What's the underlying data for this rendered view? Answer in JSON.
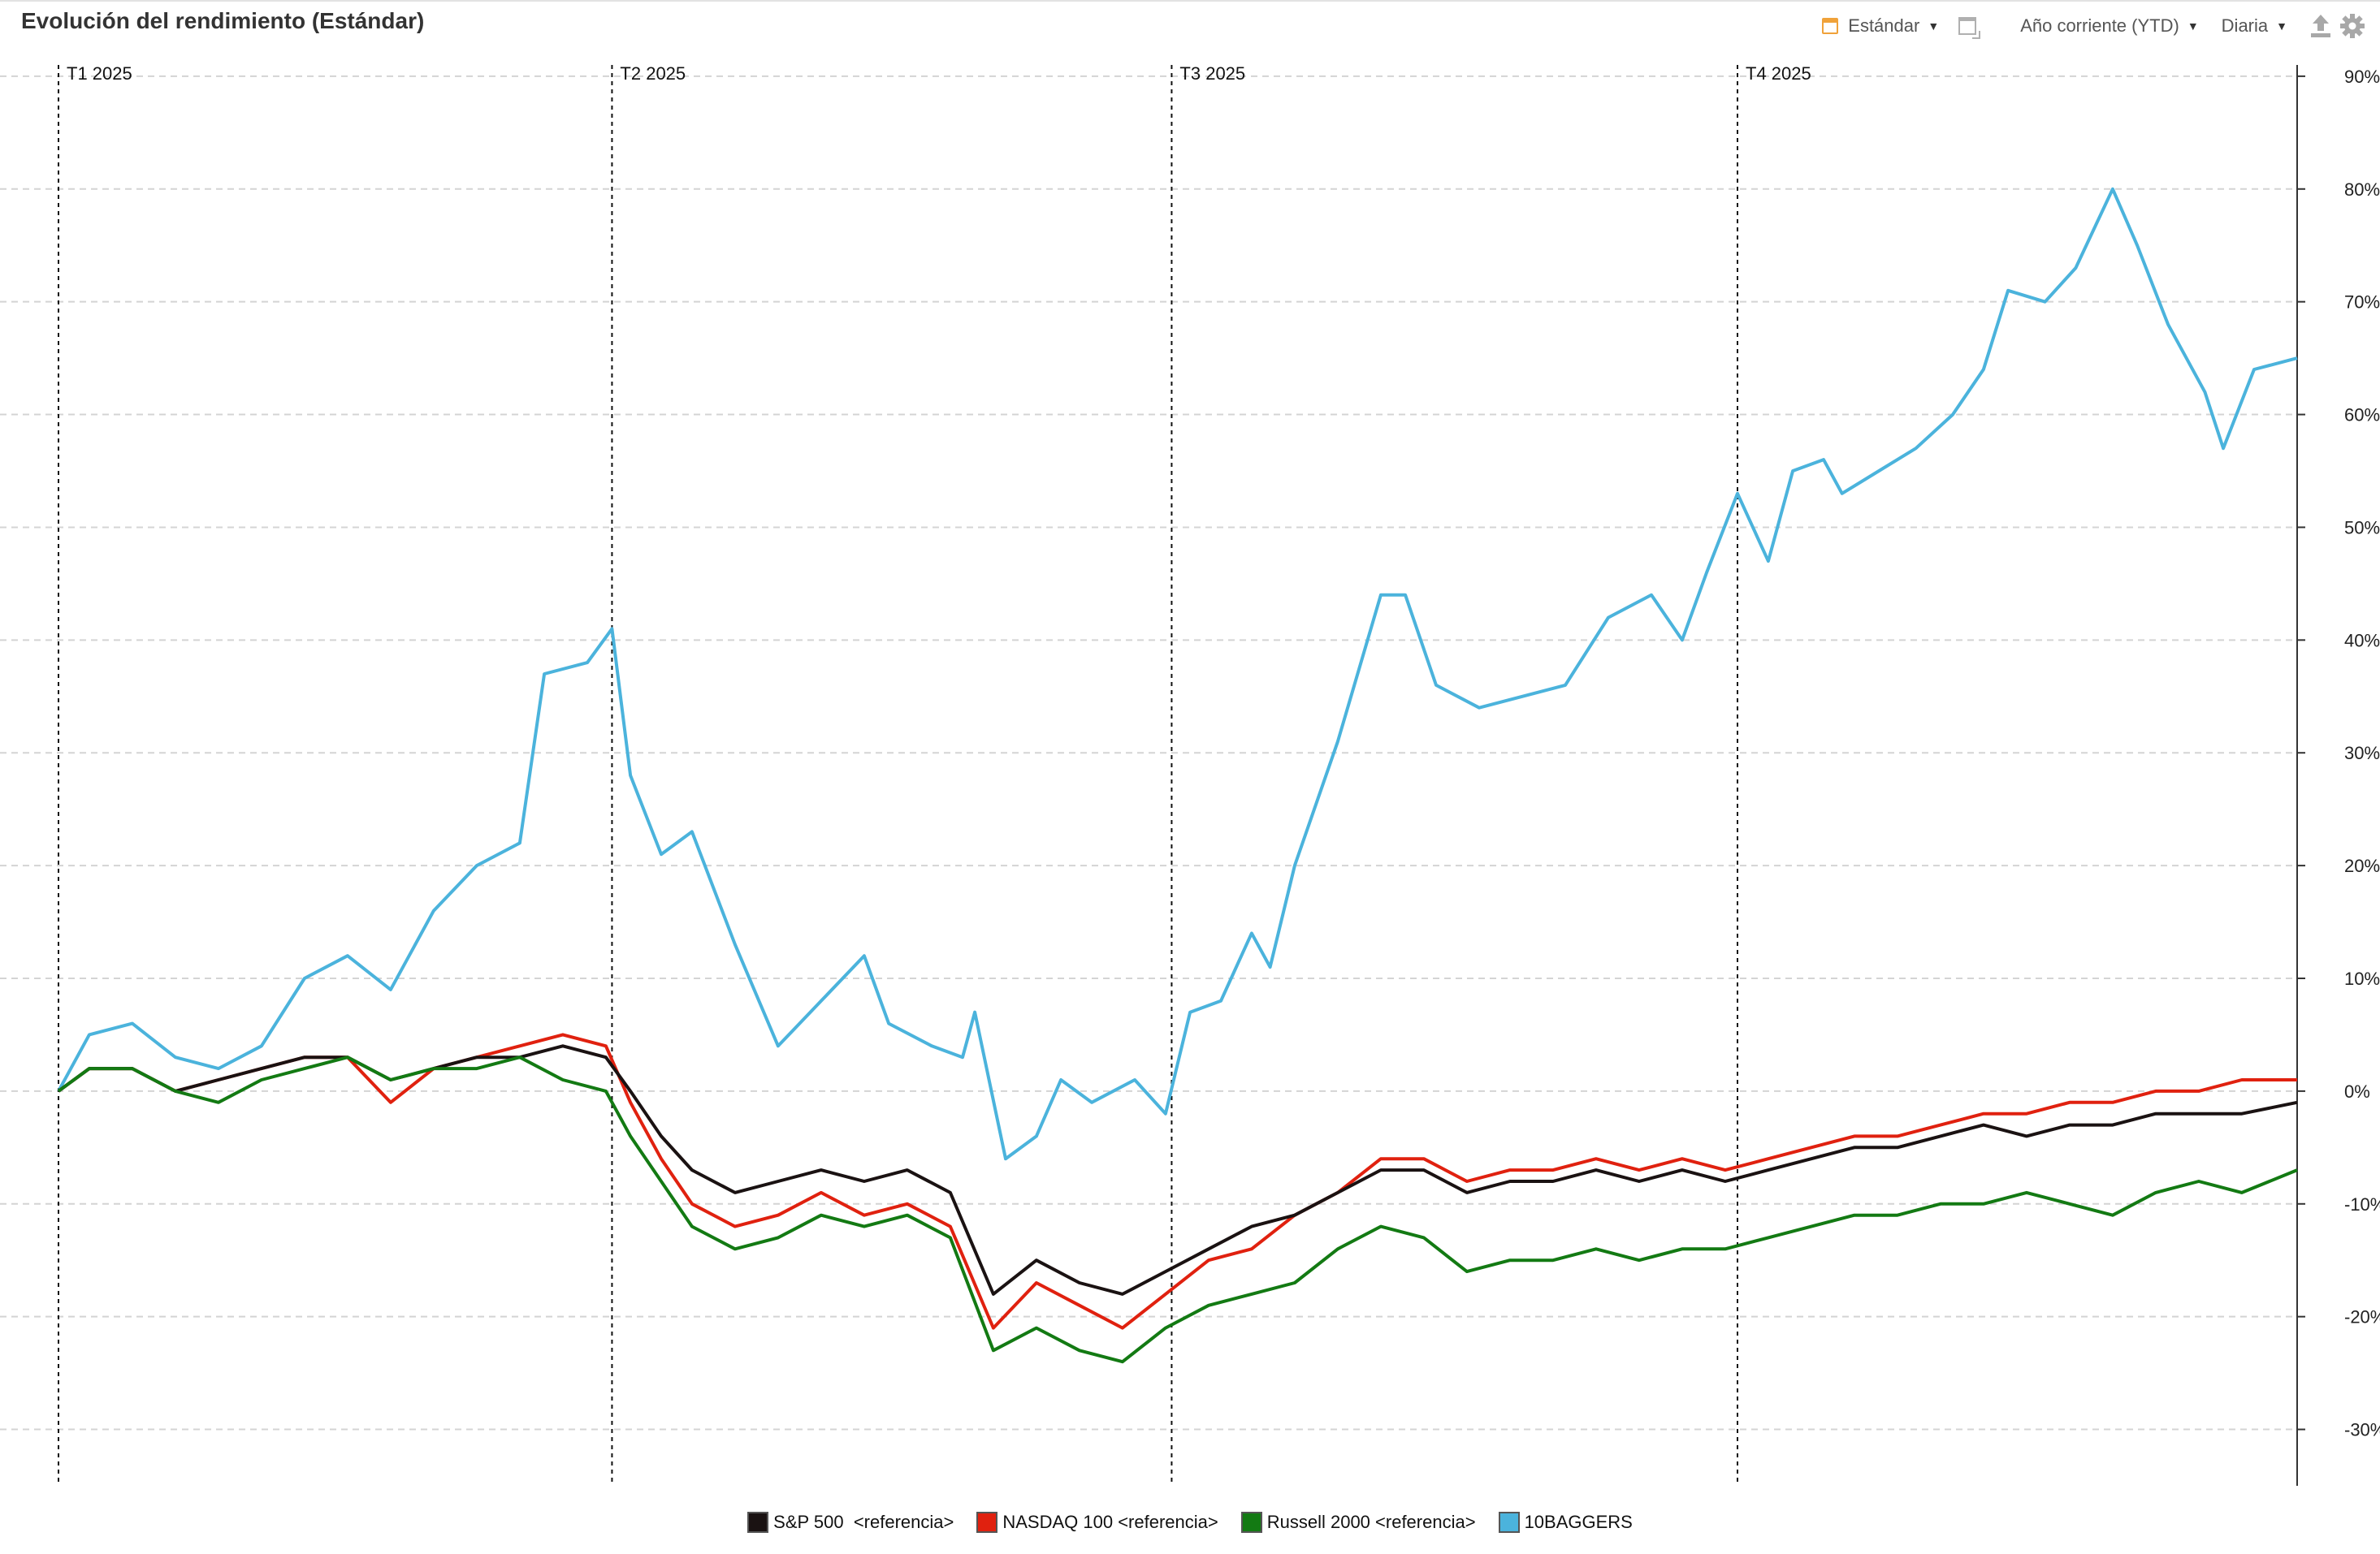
{
  "header": {
    "title": "Evolución del rendimiento (Estándar)",
    "view_label": "Estándar",
    "period_label": "Año corriente (YTD)",
    "frequency_label": "Diaria",
    "icons": [
      "calendar-icon",
      "window-icon",
      "export-icon",
      "gear-icon"
    ]
  },
  "chart_data": {
    "type": "line",
    "x_label": "",
    "y_label": "",
    "y_ticks": [
      "90%",
      "80%",
      "70%",
      "60%",
      "50%",
      "40%",
      "30%",
      "20%",
      "10%",
      "0%",
      "-10%",
      "-20%",
      "-30%"
    ],
    "ylim": [
      -35,
      91
    ],
    "y_axis_position": "right",
    "grid": "horizontal dashed",
    "x_domain": [
      "2025-01-01",
      "2025-12-31"
    ],
    "quarters": [
      {
        "label": "T1 2025",
        "date": "2025-01-01"
      },
      {
        "label": "T2 2025",
        "date": "2025-04-01"
      },
      {
        "label": "T3 2025",
        "date": "2025-07-01"
      },
      {
        "label": "T4 2025",
        "date": "2025-10-01"
      }
    ],
    "legend_position": "bottom-center",
    "series": [
      {
        "name": "10BAGGERS",
        "color": "#4bb3dc",
        "points": [
          [
            "2025-01-01",
            0
          ],
          [
            "2025-01-06",
            5
          ],
          [
            "2025-01-13",
            6
          ],
          [
            "2025-01-20",
            3
          ],
          [
            "2025-01-27",
            2
          ],
          [
            "2025-02-03",
            4
          ],
          [
            "2025-02-10",
            10
          ],
          [
            "2025-02-17",
            12
          ],
          [
            "2025-02-24",
            9
          ],
          [
            "2025-03-03",
            16
          ],
          [
            "2025-03-10",
            20
          ],
          [
            "2025-03-17",
            22
          ],
          [
            "2025-03-21",
            37
          ],
          [
            "2025-03-28",
            38
          ],
          [
            "2025-04-01",
            41
          ],
          [
            "2025-04-04",
            28
          ],
          [
            "2025-04-09",
            21
          ],
          [
            "2025-04-14",
            23
          ],
          [
            "2025-04-21",
            13
          ],
          [
            "2025-04-28",
            4
          ],
          [
            "2025-05-05",
            8
          ],
          [
            "2025-05-12",
            12
          ],
          [
            "2025-05-16",
            6
          ],
          [
            "2025-05-23",
            4
          ],
          [
            "2025-05-28",
            3
          ],
          [
            "2025-05-30",
            7
          ],
          [
            "2025-06-04",
            -6
          ],
          [
            "2025-06-09",
            -4
          ],
          [
            "2025-06-13",
            1
          ],
          [
            "2025-06-18",
            -1
          ],
          [
            "2025-06-25",
            1
          ],
          [
            "2025-06-30",
            -2
          ],
          [
            "2025-07-04",
            7
          ],
          [
            "2025-07-09",
            8
          ],
          [
            "2025-07-14",
            14
          ],
          [
            "2025-07-17",
            11
          ],
          [
            "2025-07-21",
            20
          ],
          [
            "2025-07-28",
            31
          ],
          [
            "2025-08-04",
            44
          ],
          [
            "2025-08-08",
            44
          ],
          [
            "2025-08-13",
            36
          ],
          [
            "2025-08-20",
            34
          ],
          [
            "2025-08-27",
            35
          ],
          [
            "2025-09-03",
            36
          ],
          [
            "2025-09-10",
            42
          ],
          [
            "2025-09-17",
            44
          ],
          [
            "2025-09-22",
            40
          ],
          [
            "2025-09-26",
            46
          ],
          [
            "2025-10-01",
            53
          ],
          [
            "2025-10-06",
            47
          ],
          [
            "2025-10-10",
            55
          ],
          [
            "2025-10-15",
            56
          ],
          [
            "2025-10-18",
            53
          ],
          [
            "2025-10-24",
            55
          ],
          [
            "2025-10-30",
            57
          ],
          [
            "2025-11-05",
            60
          ],
          [
            "2025-11-10",
            64
          ],
          [
            "2025-11-14",
            71
          ],
          [
            "2025-11-20",
            70
          ],
          [
            "2025-11-25",
            73
          ],
          [
            "2025-12-01",
            80
          ],
          [
            "2025-12-05",
            75
          ],
          [
            "2025-12-10",
            68
          ],
          [
            "2025-12-16",
            62
          ],
          [
            "2025-12-19",
            57
          ],
          [
            "2025-12-24",
            64
          ],
          [
            "2025-12-31",
            65
          ]
        ]
      },
      {
        "name": "NASDAQ 100 <referencia>",
        "color": "#e0210f",
        "points": [
          [
            "2025-01-01",
            0
          ],
          [
            "2025-01-06",
            2
          ],
          [
            "2025-01-13",
            2
          ],
          [
            "2025-01-20",
            0
          ],
          [
            "2025-01-27",
            1
          ],
          [
            "2025-02-03",
            2
          ],
          [
            "2025-02-10",
            3
          ],
          [
            "2025-02-17",
            3
          ],
          [
            "2025-02-24",
            -1
          ],
          [
            "2025-03-03",
            2
          ],
          [
            "2025-03-10",
            3
          ],
          [
            "2025-03-17",
            4
          ],
          [
            "2025-03-24",
            5
          ],
          [
            "2025-03-31",
            4
          ],
          [
            "2025-04-04",
            -1
          ],
          [
            "2025-04-09",
            -6
          ],
          [
            "2025-04-14",
            -10
          ],
          [
            "2025-04-21",
            -12
          ],
          [
            "2025-04-28",
            -11
          ],
          [
            "2025-05-05",
            -9
          ],
          [
            "2025-05-12",
            -11
          ],
          [
            "2025-05-19",
            -10
          ],
          [
            "2025-05-26",
            -12
          ],
          [
            "2025-06-02",
            -21
          ],
          [
            "2025-06-09",
            -17
          ],
          [
            "2025-06-16",
            -19
          ],
          [
            "2025-06-23",
            -21
          ],
          [
            "2025-06-30",
            -18
          ],
          [
            "2025-07-07",
            -15
          ],
          [
            "2025-07-14",
            -14
          ],
          [
            "2025-07-21",
            -11
          ],
          [
            "2025-07-28",
            -9
          ],
          [
            "2025-08-04",
            -6
          ],
          [
            "2025-08-11",
            -6
          ],
          [
            "2025-08-18",
            -8
          ],
          [
            "2025-08-25",
            -7
          ],
          [
            "2025-09-01",
            -7
          ],
          [
            "2025-09-08",
            -6
          ],
          [
            "2025-09-15",
            -7
          ],
          [
            "2025-09-22",
            -6
          ],
          [
            "2025-09-29",
            -7
          ],
          [
            "2025-10-06",
            -6
          ],
          [
            "2025-10-13",
            -5
          ],
          [
            "2025-10-20",
            -4
          ],
          [
            "2025-10-27",
            -4
          ],
          [
            "2025-11-03",
            -3
          ],
          [
            "2025-11-10",
            -2
          ],
          [
            "2025-11-17",
            -2
          ],
          [
            "2025-11-24",
            -1
          ],
          [
            "2025-12-01",
            -1
          ],
          [
            "2025-12-08",
            0
          ],
          [
            "2025-12-15",
            0
          ],
          [
            "2025-12-22",
            1
          ],
          [
            "2025-12-31",
            1
          ]
        ]
      },
      {
        "name": "S&P 500  <referencia>",
        "color": "#1a1212",
        "points": [
          [
            "2025-01-01",
            0
          ],
          [
            "2025-01-06",
            2
          ],
          [
            "2025-01-13",
            2
          ],
          [
            "2025-01-20",
            0
          ],
          [
            "2025-01-27",
            1
          ],
          [
            "2025-02-03",
            2
          ],
          [
            "2025-02-10",
            3
          ],
          [
            "2025-02-17",
            3
          ],
          [
            "2025-02-24",
            1
          ],
          [
            "2025-03-03",
            2
          ],
          [
            "2025-03-10",
            3
          ],
          [
            "2025-03-17",
            3
          ],
          [
            "2025-03-24",
            4
          ],
          [
            "2025-03-31",
            3
          ],
          [
            "2025-04-04",
            0
          ],
          [
            "2025-04-09",
            -4
          ],
          [
            "2025-04-14",
            -7
          ],
          [
            "2025-04-21",
            -9
          ],
          [
            "2025-04-28",
            -8
          ],
          [
            "2025-05-05",
            -7
          ],
          [
            "2025-05-12",
            -8
          ],
          [
            "2025-05-19",
            -7
          ],
          [
            "2025-05-26",
            -9
          ],
          [
            "2025-06-02",
            -18
          ],
          [
            "2025-06-09",
            -15
          ],
          [
            "2025-06-16",
            -17
          ],
          [
            "2025-06-23",
            -18
          ],
          [
            "2025-06-30",
            -16
          ],
          [
            "2025-07-07",
            -14
          ],
          [
            "2025-07-14",
            -12
          ],
          [
            "2025-07-21",
            -11
          ],
          [
            "2025-07-28",
            -9
          ],
          [
            "2025-08-04",
            -7
          ],
          [
            "2025-08-11",
            -7
          ],
          [
            "2025-08-18",
            -9
          ],
          [
            "2025-08-25",
            -8
          ],
          [
            "2025-09-01",
            -8
          ],
          [
            "2025-09-08",
            -7
          ],
          [
            "2025-09-15",
            -8
          ],
          [
            "2025-09-22",
            -7
          ],
          [
            "2025-09-29",
            -8
          ],
          [
            "2025-10-06",
            -7
          ],
          [
            "2025-10-13",
            -6
          ],
          [
            "2025-10-20",
            -5
          ],
          [
            "2025-10-27",
            -5
          ],
          [
            "2025-11-03",
            -4
          ],
          [
            "2025-11-10",
            -3
          ],
          [
            "2025-11-17",
            -4
          ],
          [
            "2025-11-24",
            -3
          ],
          [
            "2025-12-01",
            -3
          ],
          [
            "2025-12-08",
            -2
          ],
          [
            "2025-12-15",
            -2
          ],
          [
            "2025-12-22",
            -2
          ],
          [
            "2025-12-31",
            -1
          ]
        ]
      },
      {
        "name": "Russell 2000 <referencia>",
        "color": "#137a13",
        "points": [
          [
            "2025-01-01",
            0
          ],
          [
            "2025-01-06",
            2
          ],
          [
            "2025-01-13",
            2
          ],
          [
            "2025-01-20",
            0
          ],
          [
            "2025-01-27",
            -1
          ],
          [
            "2025-02-03",
            1
          ],
          [
            "2025-02-10",
            2
          ],
          [
            "2025-02-17",
            3
          ],
          [
            "2025-02-24",
            1
          ],
          [
            "2025-03-03",
            2
          ],
          [
            "2025-03-10",
            2
          ],
          [
            "2025-03-17",
            3
          ],
          [
            "2025-03-24",
            1
          ],
          [
            "2025-03-31",
            0
          ],
          [
            "2025-04-04",
            -4
          ],
          [
            "2025-04-09",
            -8
          ],
          [
            "2025-04-14",
            -12
          ],
          [
            "2025-04-21",
            -14
          ],
          [
            "2025-04-28",
            -13
          ],
          [
            "2025-05-05",
            -11
          ],
          [
            "2025-05-12",
            -12
          ],
          [
            "2025-05-19",
            -11
          ],
          [
            "2025-05-26",
            -13
          ],
          [
            "2025-06-02",
            -23
          ],
          [
            "2025-06-09",
            -21
          ],
          [
            "2025-06-16",
            -23
          ],
          [
            "2025-06-23",
            -24
          ],
          [
            "2025-06-30",
            -21
          ],
          [
            "2025-07-07",
            -19
          ],
          [
            "2025-07-14",
            -18
          ],
          [
            "2025-07-21",
            -17
          ],
          [
            "2025-07-28",
            -14
          ],
          [
            "2025-08-04",
            -12
          ],
          [
            "2025-08-11",
            -13
          ],
          [
            "2025-08-18",
            -16
          ],
          [
            "2025-08-25",
            -15
          ],
          [
            "2025-09-01",
            -15
          ],
          [
            "2025-09-08",
            -14
          ],
          [
            "2025-09-15",
            -15
          ],
          [
            "2025-09-22",
            -14
          ],
          [
            "2025-09-29",
            -14
          ],
          [
            "2025-10-06",
            -13
          ],
          [
            "2025-10-13",
            -12
          ],
          [
            "2025-10-20",
            -11
          ],
          [
            "2025-10-27",
            -11
          ],
          [
            "2025-11-03",
            -10
          ],
          [
            "2025-11-10",
            -10
          ],
          [
            "2025-11-17",
            -9
          ],
          [
            "2025-11-24",
            -10
          ],
          [
            "2025-12-01",
            -11
          ],
          [
            "2025-12-08",
            -9
          ],
          [
            "2025-12-15",
            -8
          ],
          [
            "2025-12-22",
            -9
          ],
          [
            "2025-12-31",
            -7
          ]
        ]
      }
    ]
  },
  "legend": [
    {
      "label": "S&P 500  <referencia>",
      "color": "#1a1212"
    },
    {
      "label": "NASDAQ 100 <referencia>",
      "color": "#e0210f"
    },
    {
      "label": "Russell 2000 <referencia>",
      "color": "#137a13"
    },
    {
      "label": "10BAGGERS",
      "color": "#4bb3dc"
    }
  ]
}
